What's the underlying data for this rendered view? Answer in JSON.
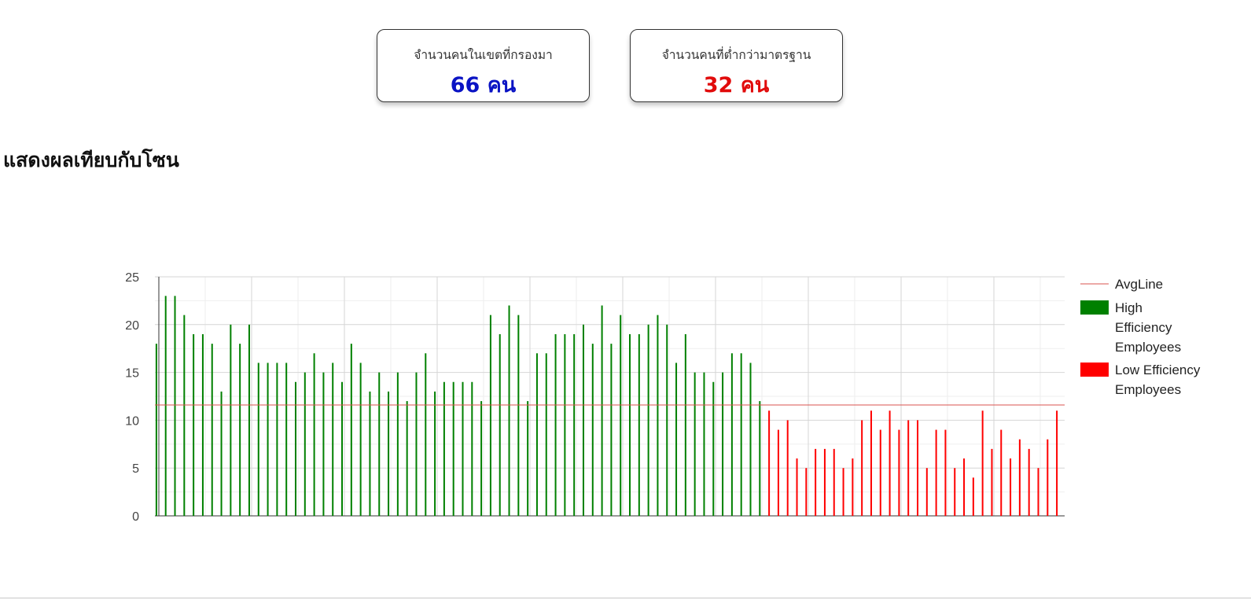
{
  "stats": {
    "screened": {
      "label": "จำนวนคนในเขตที่กรองมา",
      "value": "66 คน",
      "color": "#0a13c4"
    },
    "below_standard": {
      "label": "จำนวนคนที่ต่ำกว่ามาตรฐาน",
      "value": "32 คน",
      "color": "#e10b0b"
    }
  },
  "section_title": "แสดงผลเทียบกับโซน",
  "chart_data": {
    "type": "bar",
    "ylim": [
      0,
      25
    ],
    "y_ticks": [
      "0",
      "5",
      "10",
      "15",
      "20",
      "25"
    ],
    "grid": true,
    "legend_position": "right",
    "avg_line": {
      "name": "AvgLine",
      "value": 11.6,
      "color": "#d9534f"
    },
    "series": [
      {
        "name": "High Efficiency Employees",
        "color": "#008000",
        "values": [
          18,
          23,
          23,
          21,
          19,
          19,
          18,
          13,
          20,
          18,
          20,
          16,
          16,
          16,
          16,
          14,
          15,
          17,
          15,
          16,
          14,
          18,
          16,
          13,
          15,
          13,
          15,
          12,
          15,
          17,
          13,
          14,
          14,
          14,
          14,
          12,
          21,
          19,
          22,
          21,
          12,
          17,
          17,
          19,
          19,
          19,
          20,
          18,
          22,
          18,
          21,
          19,
          19,
          20,
          21,
          20,
          16,
          19,
          15,
          15,
          14,
          15,
          17,
          17,
          16,
          12
        ]
      },
      {
        "name": "Low Efficiency Employees",
        "color": "#ff0000",
        "values": [
          11,
          9,
          10,
          6,
          5,
          7,
          7,
          7,
          5,
          6,
          10,
          11,
          9,
          11,
          9,
          10,
          10,
          5,
          9,
          9,
          5,
          6,
          4,
          11,
          7,
          9,
          6,
          8,
          7,
          5,
          8,
          11
        ]
      }
    ]
  }
}
